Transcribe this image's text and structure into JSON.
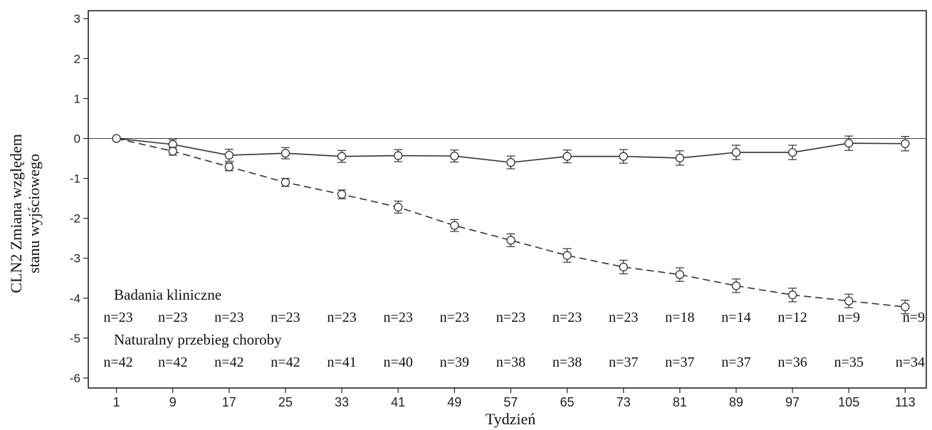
{
  "chart_data": {
    "type": "line",
    "title": "",
    "xlabel": "Tydzień",
    "ylabel_lines": [
      "CLN2 Zmiana względem",
      "stanu wyjściowego"
    ],
    "x": [
      1,
      9,
      17,
      25,
      33,
      41,
      49,
      57,
      65,
      73,
      81,
      89,
      97,
      105,
      113
    ],
    "x_ticks": [
      "1",
      "9",
      "17",
      "25",
      "33",
      "41",
      "49",
      "57",
      "65",
      "73",
      "81",
      "89",
      "97",
      "105",
      "113"
    ],
    "y_ticks": [
      "3",
      "2",
      "1",
      "0",
      "-1",
      "-2",
      "-3",
      "-4",
      "-5",
      "-6"
    ],
    "xlim": [
      -3,
      116
    ],
    "ylim": [
      -6.25,
      3.2
    ],
    "reference_line_y": 0,
    "series": [
      {
        "name": "Badania kliniczne",
        "style": "solid",
        "color": "#333333",
        "values": [
          0,
          -0.15,
          -0.42,
          -0.37,
          -0.45,
          -0.43,
          -0.44,
          -0.6,
          -0.45,
          -0.45,
          -0.49,
          -0.35,
          -0.35,
          -0.12,
          -0.13
        ],
        "errors": [
          0,
          0.12,
          0.15,
          0.14,
          0.15,
          0.15,
          0.15,
          0.16,
          0.16,
          0.17,
          0.18,
          0.18,
          0.18,
          0.18,
          0.18
        ],
        "n_labels": [
          "n=23",
          "n=23",
          "n=23",
          "n=23",
          "n=23",
          "n=23",
          "n=23",
          "n=23",
          "n=23",
          "n=23",
          "n=18",
          "n=14",
          "n=12",
          "n=9",
          "n=9"
        ]
      },
      {
        "name": "Naturalny przebieg choroby",
        "style": "dashed",
        "color": "#333333",
        "values": [
          0,
          -0.32,
          -0.71,
          -1.1,
          -1.4,
          -1.72,
          -2.18,
          -2.55,
          -2.93,
          -3.22,
          -3.41,
          -3.69,
          -3.92,
          -4.07,
          -4.22
        ],
        "errors": [
          0,
          0.1,
          0.1,
          0.1,
          0.11,
          0.15,
          0.15,
          0.16,
          0.17,
          0.17,
          0.17,
          0.17,
          0.17,
          0.17,
          0.17
        ],
        "n_labels": [
          "n=42",
          "n=42",
          "n=42",
          "n=42",
          "n=41",
          "n=40",
          "n=39",
          "n=38",
          "n=38",
          "n=37",
          "n=37",
          "n=37",
          "n=36",
          "n=35",
          "n=34"
        ]
      }
    ]
  }
}
